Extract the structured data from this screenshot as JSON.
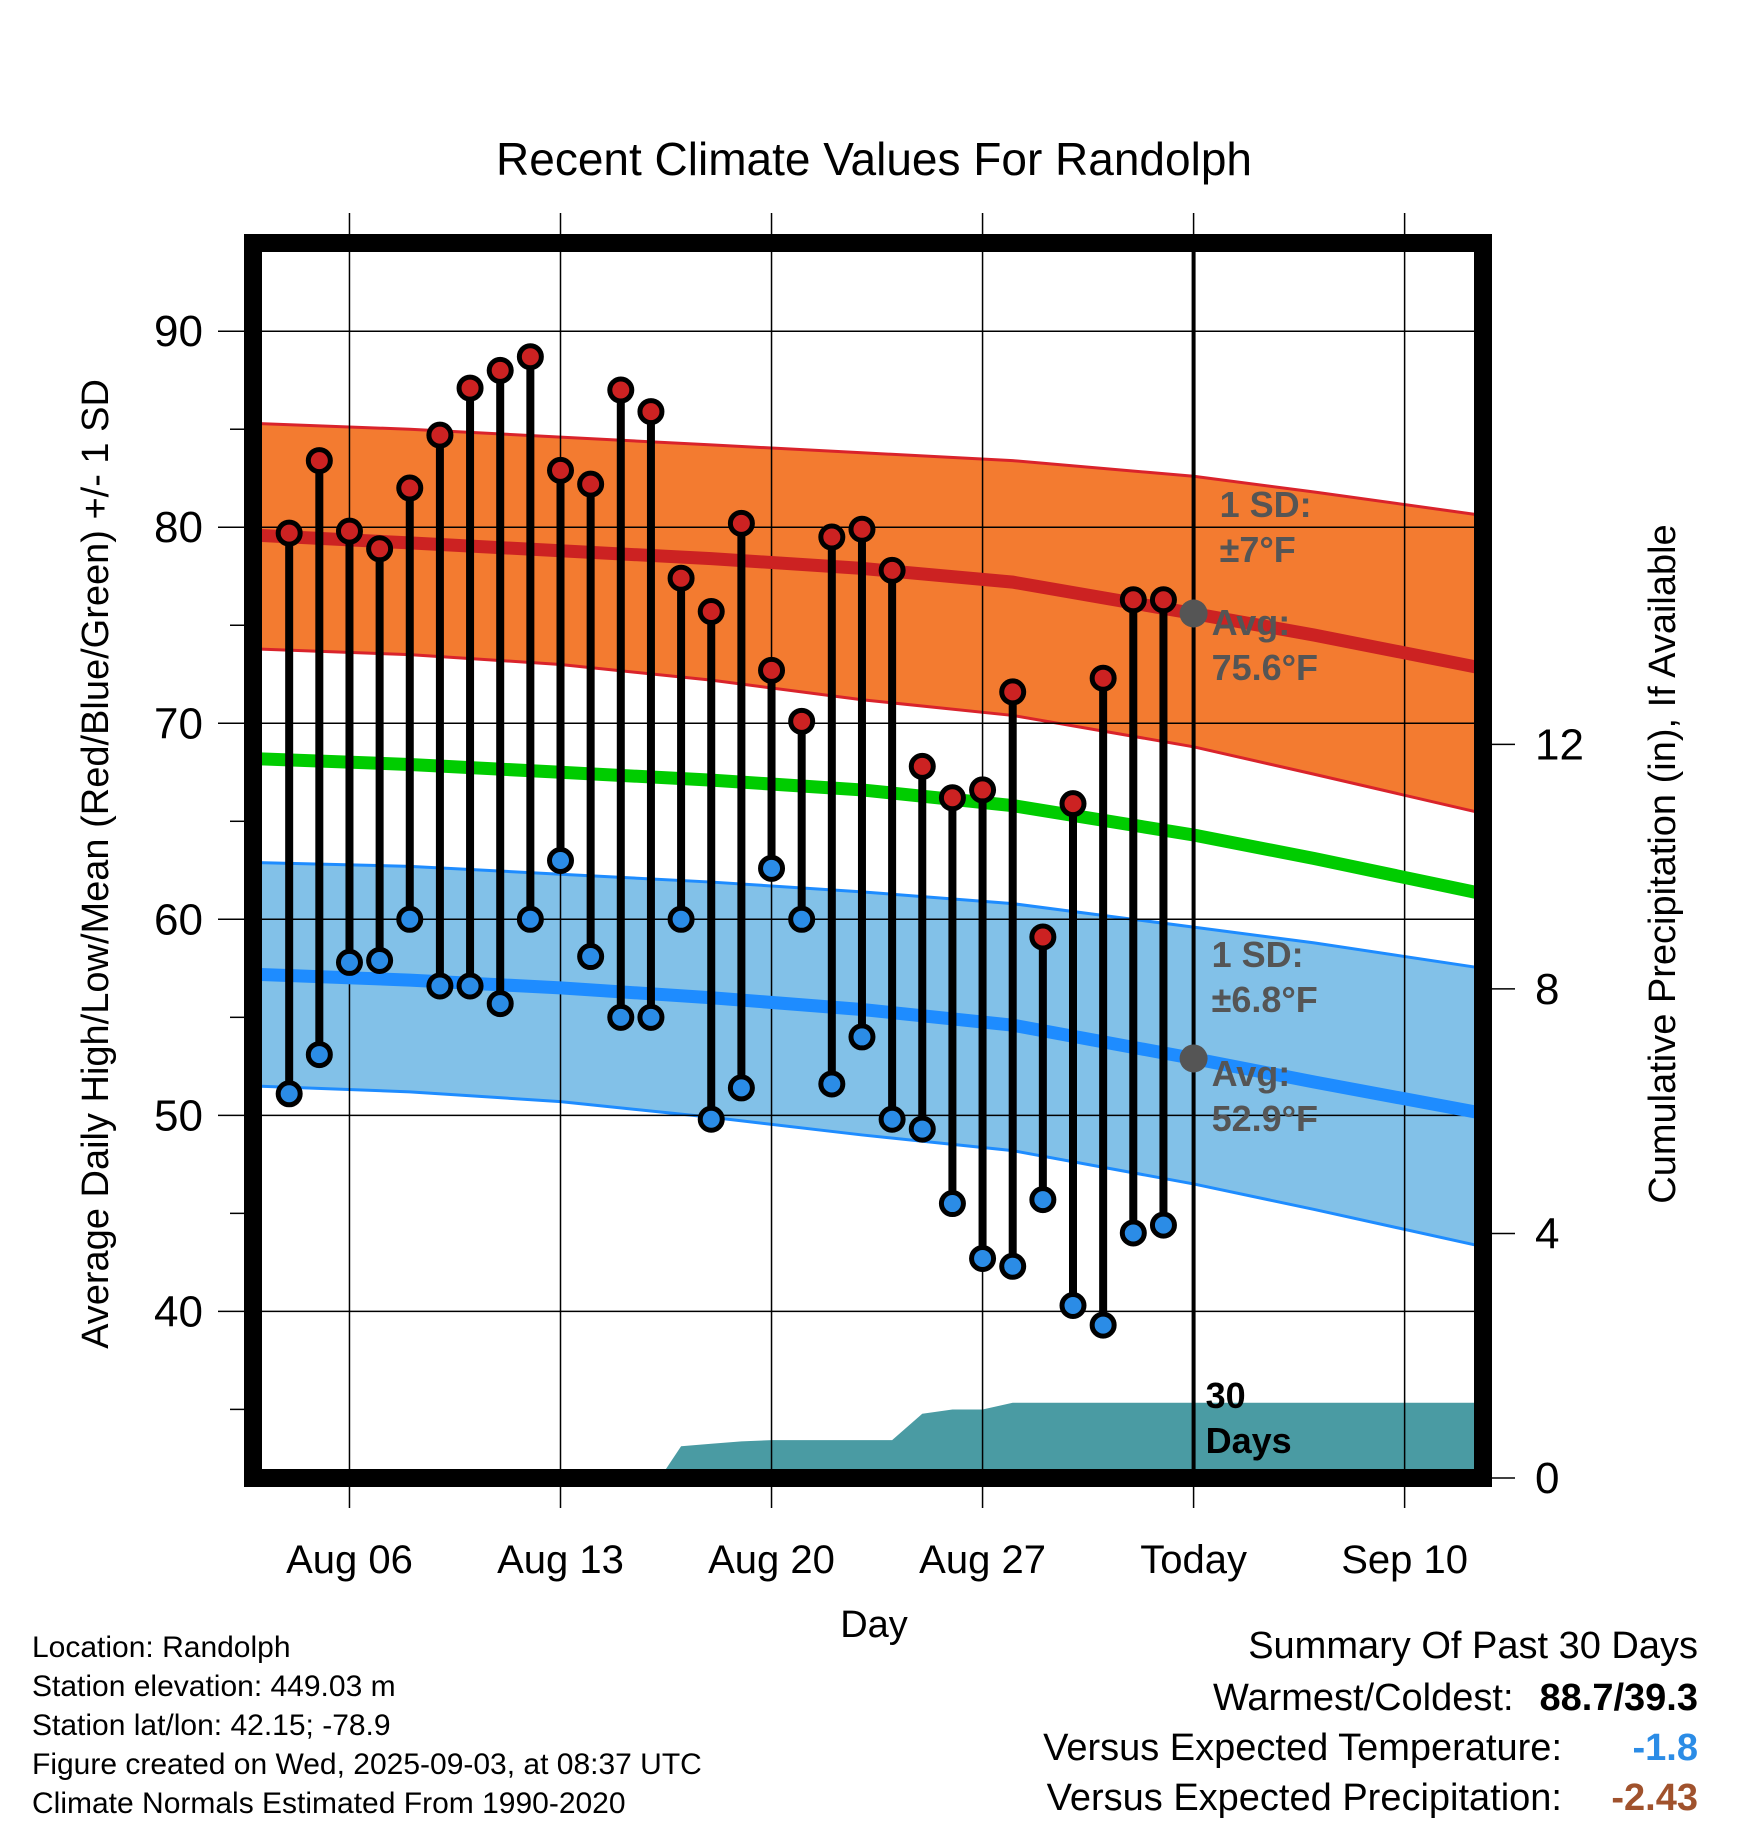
{
  "chart_data": {
    "type": "line",
    "title": "Recent Climate Values For Randolph",
    "xlabel": "Day",
    "ylabel": "Average Daily High/Low/Mean (Red/Blue/Green) +/- 1 SD",
    "y2label": "Cumulative Precipitation (in), If Available",
    "x_tick_labels": [
      "Aug 06",
      "Aug 13",
      "Aug 20",
      "Aug 27",
      "Today",
      "Sep 10"
    ],
    "x_tick_days": [
      6,
      13,
      20,
      27,
      34,
      41
    ],
    "x_range_days": [
      2.8,
      43.6
    ],
    "today_day": 34,
    "ylim": [
      31.5,
      94.5
    ],
    "y_ticks": [
      40,
      50,
      60,
      70,
      80,
      90
    ],
    "y2lim": [
      0,
      20.2
    ],
    "y2_ticks": [
      0,
      4,
      8,
      12
    ],
    "grid": true,
    "series": [
      {
        "name": "Daily High",
        "color": "#cc2222",
        "days": [
          4,
          5,
          6,
          7,
          8,
          9,
          10,
          11,
          12,
          13,
          14,
          15,
          16,
          17,
          18,
          19,
          20,
          21,
          22,
          23,
          24,
          25,
          26,
          27,
          28,
          29,
          30,
          31,
          32,
          33
        ],
        "values": [
          79.7,
          83.4,
          79.8,
          78.9,
          82.0,
          84.7,
          87.1,
          88.0,
          88.7,
          82.9,
          82.2,
          87.0,
          85.9,
          77.4,
          75.7,
          80.2,
          72.7,
          70.1,
          79.5,
          79.9,
          77.8,
          67.8,
          66.2,
          66.6,
          71.6,
          59.1,
          65.9,
          72.3,
          76.3,
          76.3
        ]
      },
      {
        "name": "Daily Low",
        "color": "#2b8ce6",
        "days": [
          4,
          5,
          6,
          7,
          8,
          9,
          10,
          11,
          12,
          13,
          14,
          15,
          16,
          17,
          18,
          19,
          20,
          21,
          22,
          23,
          24,
          25,
          26,
          27,
          28,
          29,
          30,
          31,
          32,
          33
        ],
        "values": [
          51.1,
          53.1,
          57.8,
          57.9,
          60.0,
          56.6,
          56.6,
          55.7,
          60.0,
          63.0,
          58.1,
          55.0,
          55.0,
          60.0,
          49.8,
          51.4,
          62.6,
          60.0,
          51.6,
          54.0,
          49.8,
          49.3,
          45.5,
          42.7,
          42.3,
          45.7,
          40.3,
          39.3,
          44.0,
          44.4
        ]
      },
      {
        "name": "Normal High",
        "color": "#cc2222",
        "days": [
          2.8,
          8,
          13,
          18,
          23,
          28,
          34,
          38,
          43.6
        ],
        "values": [
          79.6,
          79.2,
          78.8,
          78.4,
          77.9,
          77.2,
          75.6,
          74.5,
          72.8
        ]
      },
      {
        "name": "Normal High +/- 1 SD",
        "color": "#f37b30",
        "days": [
          2.8,
          8,
          13,
          18,
          23,
          28,
          34,
          38,
          43.6
        ],
        "upper": [
          85.3,
          85.0,
          84.6,
          84.2,
          83.8,
          83.4,
          82.6,
          81.8,
          80.6
        ],
        "lower": [
          73.8,
          73.5,
          73.0,
          72.2,
          71.2,
          70.4,
          68.8,
          67.4,
          65.4
        ]
      },
      {
        "name": "Normal Mean",
        "color": "#00cc00",
        "days": [
          2.8,
          8,
          13,
          18,
          23,
          28,
          34,
          38,
          43.6
        ],
        "values": [
          68.2,
          67.9,
          67.5,
          67.1,
          66.6,
          65.8,
          64.3,
          63.1,
          61.3
        ]
      },
      {
        "name": "Normal Low",
        "color": "#1e8cff",
        "days": [
          2.8,
          8,
          13,
          18,
          23,
          28,
          34,
          38,
          43.6
        ],
        "values": [
          57.2,
          56.9,
          56.5,
          56.0,
          55.4,
          54.6,
          52.9,
          51.7,
          50.1
        ]
      },
      {
        "name": "Normal Low +/- 1 SD",
        "color": "#82c1e8",
        "days": [
          2.8,
          8,
          13,
          18,
          23,
          28,
          34,
          38,
          43.6
        ],
        "upper": [
          62.9,
          62.7,
          62.3,
          61.9,
          61.4,
          60.8,
          59.6,
          58.8,
          57.5
        ],
        "lower": [
          51.5,
          51.2,
          50.7,
          49.9,
          49.0,
          48.2,
          46.5,
          45.2,
          43.3
        ]
      },
      {
        "name": "Cumulative Precipitation",
        "color": "#4a9ba3",
        "days": [
          2.8,
          16.3,
          17,
          18,
          19,
          20,
          21,
          22,
          23,
          24,
          25,
          26,
          27,
          28,
          34,
          43.6
        ],
        "values": [
          0,
          0,
          0.52,
          0.56,
          0.6,
          0.62,
          0.62,
          0.62,
          0.62,
          0.62,
          1.05,
          1.12,
          1.12,
          1.23,
          1.23,
          1.23
        ]
      }
    ],
    "annotations": {
      "high_sd_label": "1 SD:",
      "high_sd_value": "±7°F",
      "high_avg_label": "Avg:",
      "high_avg_value": "75.6°F",
      "low_sd_label": "1 SD:",
      "low_sd_value": "±6.8°F",
      "low_avg_label": "Avg:",
      "low_avg_value": "52.9°F",
      "days_label_1": "30",
      "days_label_2": "Days",
      "high_avg_point": 75.6,
      "low_avg_point": 52.9
    },
    "colors": {
      "high_marker": "#cc2222",
      "low_marker": "#2b8ce6",
      "avg_marker": "#555555",
      "annotation_text": "#555555"
    }
  },
  "info": {
    "location": "Location: Randolph",
    "elevation": "Station elevation: 449.03 m",
    "latlon": "Station lat/lon: 42.15; -78.9",
    "created": "Figure created on Wed, 2025-09-03, at 08:37 UTC",
    "normals": "Climate Normals Estimated From 1990-2020"
  },
  "summary": {
    "heading": "Summary Of Past 30 Days",
    "warmest_label": "Warmest/Coldest:",
    "warmest_value": "88.7/39.3",
    "temp_label": "Versus Expected Temperature:",
    "temp_value": "-1.8",
    "temp_color": "#2b8ce6",
    "precip_label": "Versus Expected Precipitation:",
    "precip_value": "-2.43",
    "precip_color": "#a0522d"
  }
}
